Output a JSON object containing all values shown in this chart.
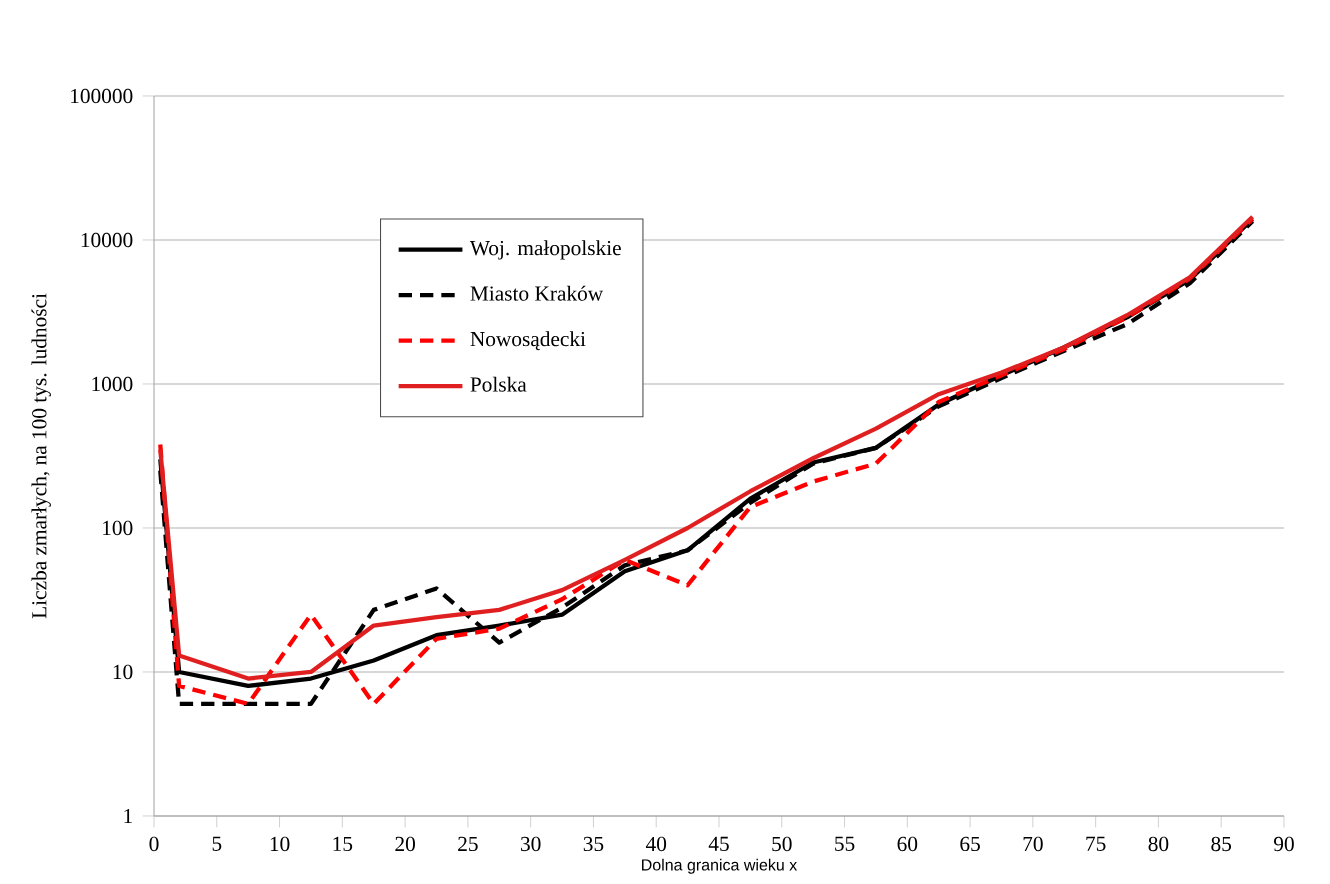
{
  "chart_data": {
    "type": "line",
    "ylabel": "Liczba  zmarłych,   na 100 tys. ludności",
    "xlabel": "Dolna granica wieku x",
    "x": [
      0.5,
      2,
      7.5,
      12.5,
      17.5,
      22.5,
      27.5,
      32.5,
      37.5,
      42.5,
      47.5,
      52.5,
      57.5,
      62.5,
      67.5,
      72.5,
      77.5,
      82.5,
      87.5
    ],
    "series": [
      {
        "name": "Woj. małopolskie",
        "color": "#000000",
        "line_style": "solid",
        "values": [
          300,
          10,
          8,
          9,
          12,
          18,
          21,
          25,
          50,
          70,
          160,
          285,
          360,
          720,
          1150,
          1800,
          2900,
          5300,
          14000
        ]
      },
      {
        "name": "Miasto Kraków",
        "color": "#000000",
        "line_style": "dashed",
        "values": [
          250,
          6,
          6,
          6,
          27,
          38,
          16,
          28,
          55,
          70,
          150,
          280,
          360,
          700,
          1100,
          1700,
          2600,
          5000,
          13500
        ]
      },
      {
        "name": "Nowosądecki",
        "color": "#ff0000",
        "line_style": "dashed",
        "values": [
          380,
          8,
          6,
          25,
          6,
          17,
          20,
          32,
          60,
          40,
          140,
          210,
          280,
          750,
          1150,
          1750,
          2900,
          5400,
          14000
        ]
      },
      {
        "name": "Polska",
        "color": "#e02020",
        "line_style": "solid",
        "values": [
          350,
          13,
          9,
          10,
          21,
          24,
          27,
          37,
          60,
          100,
          180,
          305,
          490,
          850,
          1200,
          1800,
          3000,
          5500,
          14500
        ]
      }
    ],
    "xlim": [
      0,
      90
    ],
    "xticks": [
      0,
      5,
      10,
      15,
      20,
      25,
      30,
      35,
      40,
      45,
      50,
      55,
      60,
      65,
      70,
      75,
      80,
      85,
      90
    ],
    "ylim": [
      1,
      100000
    ],
    "yticks": [
      1,
      10,
      100,
      1000,
      10000,
      100000
    ],
    "log": "y",
    "grid": "y",
    "legend": "top left",
    "marker": "none"
  }
}
